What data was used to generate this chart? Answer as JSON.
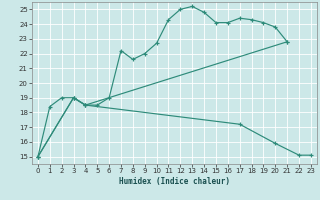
{
  "xlabel": "Humidex (Indice chaleur)",
  "bg_color": "#cce8e8",
  "line_color": "#2e8b7a",
  "grid_color": "#ffffff",
  "xlim": [
    -0.5,
    23.5
  ],
  "ylim": [
    14.5,
    25.5
  ],
  "yticks": [
    15,
    16,
    17,
    18,
    19,
    20,
    21,
    22,
    23,
    24,
    25
  ],
  "xticks": [
    0,
    1,
    2,
    3,
    4,
    5,
    6,
    7,
    8,
    9,
    10,
    11,
    12,
    13,
    14,
    15,
    16,
    17,
    18,
    19,
    20,
    21,
    22,
    23
  ],
  "line1_x": [
    0,
    1,
    2,
    3,
    4,
    5,
    6,
    7,
    8,
    9,
    10,
    11,
    12,
    13,
    14,
    15,
    16,
    17,
    18,
    19,
    20,
    21
  ],
  "line1_y": [
    15,
    18.4,
    19.0,
    19.0,
    18.5,
    18.5,
    19.0,
    22.2,
    21.6,
    22.0,
    22.7,
    24.3,
    25.0,
    25.2,
    24.8,
    24.1,
    24.1,
    24.4,
    24.3,
    24.1,
    23.8,
    22.8
  ],
  "line2_x": [
    0,
    3,
    4,
    21
  ],
  "line2_y": [
    15,
    19.0,
    18.5,
    22.8
  ],
  "line3_x": [
    0,
    3,
    4,
    17,
    20,
    22,
    23
  ],
  "line3_y": [
    15,
    19.0,
    18.5,
    17.2,
    15.9,
    15.1,
    15.1
  ]
}
